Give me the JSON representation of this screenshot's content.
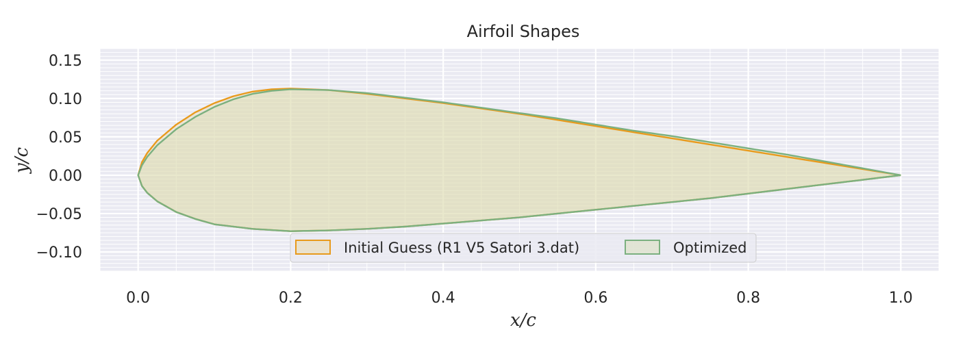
{
  "chart_data": {
    "type": "area",
    "title": "Airfoil Shapes",
    "xlabel": "x/c",
    "ylabel": "y/c",
    "xlim": [
      -0.05,
      1.05
    ],
    "ylim": [
      -0.125,
      0.165
    ],
    "xticks": [
      0.0,
      0.2,
      0.4,
      0.6,
      0.8,
      1.0
    ],
    "xtick_labels": [
      "0.0",
      "0.2",
      "0.4",
      "0.6",
      "0.8",
      "1.0"
    ],
    "yticks": [
      0.15,
      0.1,
      0.05,
      0.0,
      -0.05,
      -0.1
    ],
    "ytick_labels": [
      "0.15",
      "0.10",
      "0.05",
      "0.00",
      "−0.05",
      "−0.10"
    ],
    "grid": true,
    "minor_grid": true,
    "legend_position": "lower-center",
    "series": [
      {
        "name": "Initial Guess (R1 V5 Satori 3.dat)",
        "color": "#e89a1c",
        "fill": "#e8d7a8",
        "upper": [
          [
            0.0,
            0.0
          ],
          [
            0.005,
            0.017
          ],
          [
            0.012,
            0.029
          ],
          [
            0.025,
            0.045
          ],
          [
            0.05,
            0.066
          ],
          [
            0.075,
            0.082
          ],
          [
            0.1,
            0.094
          ],
          [
            0.125,
            0.103
          ],
          [
            0.15,
            0.109
          ],
          [
            0.175,
            0.112
          ],
          [
            0.2,
            0.113
          ],
          [
            0.25,
            0.111
          ],
          [
            0.3,
            0.106
          ],
          [
            0.35,
            0.1
          ],
          [
            0.4,
            0.094
          ],
          [
            0.45,
            0.087
          ],
          [
            0.5,
            0.08
          ],
          [
            0.55,
            0.072
          ],
          [
            0.6,
            0.064
          ],
          [
            0.65,
            0.056
          ],
          [
            0.7,
            0.048
          ],
          [
            0.75,
            0.04
          ],
          [
            0.8,
            0.032
          ],
          [
            0.85,
            0.024
          ],
          [
            0.9,
            0.016
          ],
          [
            0.95,
            0.008
          ],
          [
            1.0,
            0.0
          ]
        ],
        "lower": [
          [
            0.0,
            0.0
          ],
          [
            0.005,
            -0.014
          ],
          [
            0.012,
            -0.023
          ],
          [
            0.025,
            -0.034
          ],
          [
            0.05,
            -0.048
          ],
          [
            0.075,
            -0.057
          ],
          [
            0.1,
            -0.064
          ],
          [
            0.15,
            -0.07
          ],
          [
            0.2,
            -0.073
          ],
          [
            0.25,
            -0.072
          ],
          [
            0.3,
            -0.07
          ],
          [
            0.35,
            -0.067
          ],
          [
            0.4,
            -0.063
          ],
          [
            0.45,
            -0.059
          ],
          [
            0.5,
            -0.055
          ],
          [
            0.55,
            -0.05
          ],
          [
            0.6,
            -0.045
          ],
          [
            0.65,
            -0.04
          ],
          [
            0.7,
            -0.035
          ],
          [
            0.75,
            -0.03
          ],
          [
            0.8,
            -0.024
          ],
          [
            0.85,
            -0.018
          ],
          [
            0.9,
            -0.012
          ],
          [
            0.95,
            -0.006
          ],
          [
            1.0,
            0.0
          ]
        ]
      },
      {
        "name": "Optimized",
        "color": "#7bb07f",
        "fill": "#d7deb5",
        "upper": [
          [
            0.0,
            0.0
          ],
          [
            0.005,
            0.013
          ],
          [
            0.012,
            0.024
          ],
          [
            0.025,
            0.039
          ],
          [
            0.05,
            0.06
          ],
          [
            0.075,
            0.076
          ],
          [
            0.1,
            0.089
          ],
          [
            0.125,
            0.099
          ],
          [
            0.15,
            0.106
          ],
          [
            0.175,
            0.11
          ],
          [
            0.2,
            0.112
          ],
          [
            0.25,
            0.111
          ],
          [
            0.3,
            0.107
          ],
          [
            0.35,
            0.101
          ],
          [
            0.4,
            0.095
          ],
          [
            0.45,
            0.088
          ],
          [
            0.5,
            0.081
          ],
          [
            0.55,
            0.074
          ],
          [
            0.6,
            0.066
          ],
          [
            0.65,
            0.058
          ],
          [
            0.7,
            0.051
          ],
          [
            0.75,
            0.043
          ],
          [
            0.8,
            0.035
          ],
          [
            0.85,
            0.027
          ],
          [
            0.9,
            0.018
          ],
          [
            0.95,
            0.009
          ],
          [
            1.0,
            0.0
          ]
        ],
        "lower": [
          [
            0.0,
            0.0
          ],
          [
            0.005,
            -0.014
          ],
          [
            0.012,
            -0.023
          ],
          [
            0.025,
            -0.034
          ],
          [
            0.05,
            -0.048
          ],
          [
            0.075,
            -0.057
          ],
          [
            0.1,
            -0.064
          ],
          [
            0.15,
            -0.07
          ],
          [
            0.2,
            -0.073
          ],
          [
            0.25,
            -0.072
          ],
          [
            0.3,
            -0.07
          ],
          [
            0.35,
            -0.067
          ],
          [
            0.4,
            -0.063
          ],
          [
            0.45,
            -0.059
          ],
          [
            0.5,
            -0.055
          ],
          [
            0.55,
            -0.05
          ],
          [
            0.6,
            -0.045
          ],
          [
            0.65,
            -0.04
          ],
          [
            0.7,
            -0.035
          ],
          [
            0.75,
            -0.03
          ],
          [
            0.8,
            -0.024
          ],
          [
            0.85,
            -0.018
          ],
          [
            0.9,
            -0.012
          ],
          [
            0.95,
            -0.006
          ],
          [
            1.0,
            0.0
          ]
        ]
      }
    ]
  },
  "colors": {
    "plot_background": "#eaeaf2",
    "grid": "#ffffff"
  }
}
